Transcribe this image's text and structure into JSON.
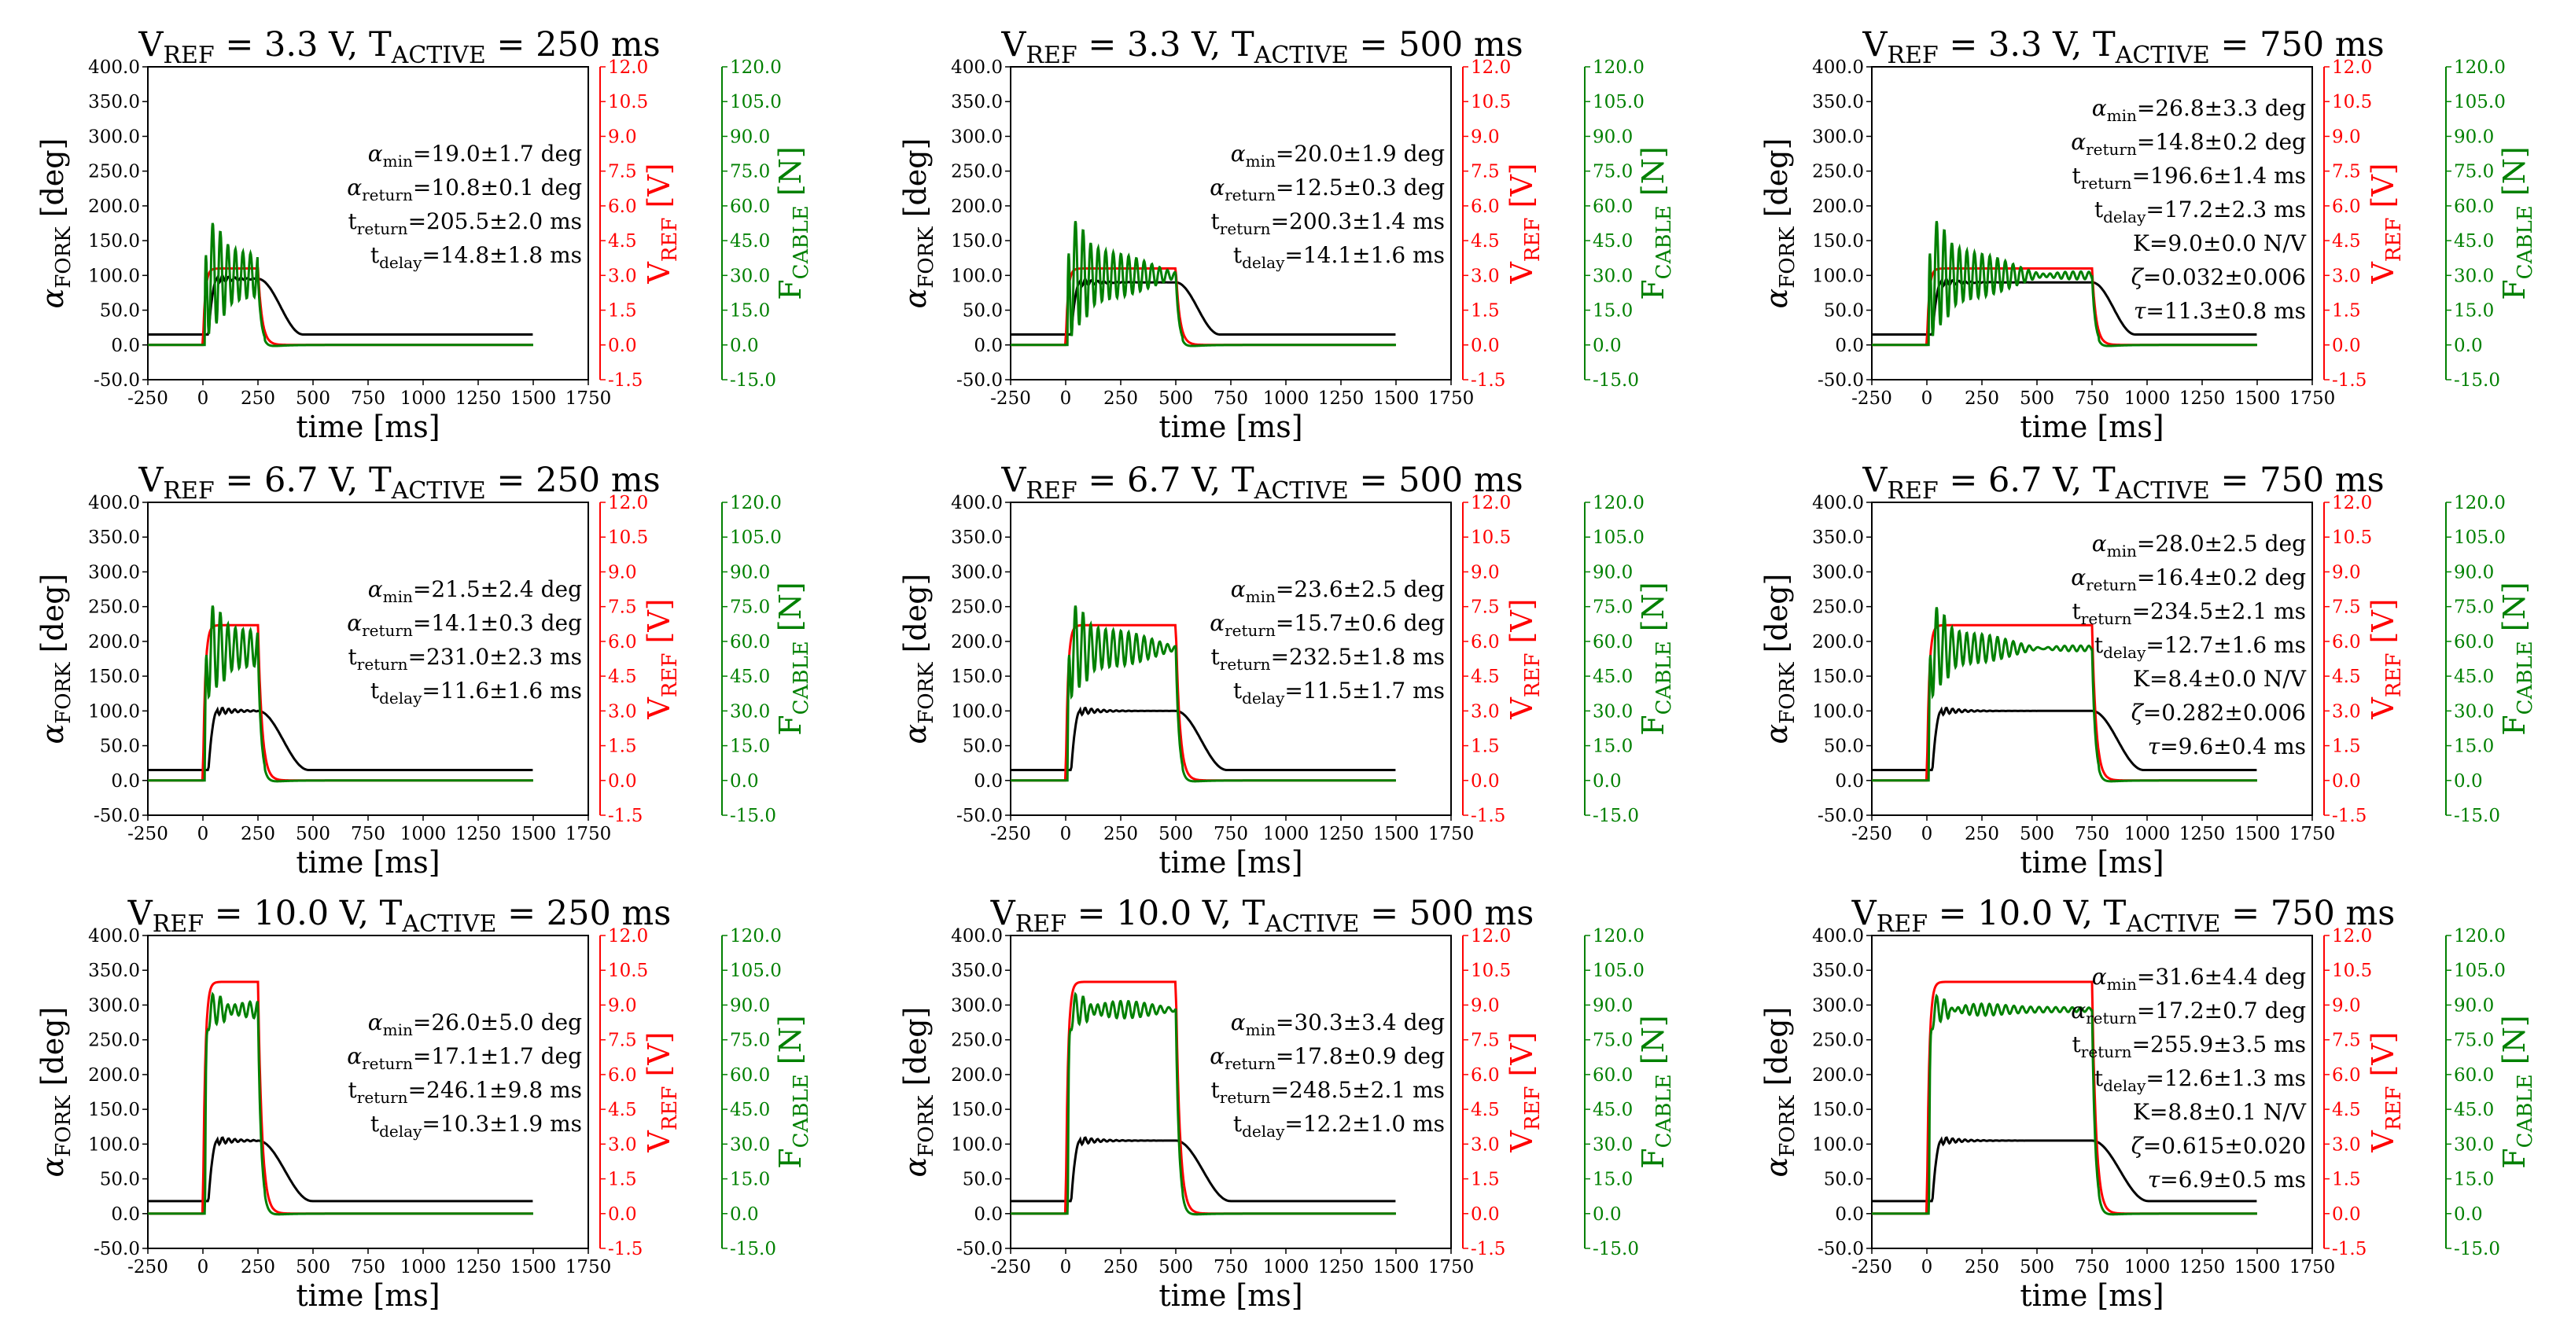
{
  "figure": {
    "xlabel": "time [ms]",
    "units": {
      "deg": "deg",
      "ms": "ms",
      "NV": "N/V"
    },
    "axes": {
      "left": {
        "label_main": "α",
        "label_sub": "FORK",
        "label_unit": "[deg]",
        "ticks": [
          "-50.0",
          "0.0",
          "50.0",
          "100.0",
          "150.0",
          "200.0",
          "250.0",
          "300.0",
          "350.0",
          "400.0"
        ],
        "color": "#000000"
      },
      "right1": {
        "label_main": "V",
        "label_sub": "REF",
        "label_unit": "[V]",
        "ticks": [
          "-1.5",
          "0.0",
          "1.5",
          "3.0",
          "4.5",
          "6.0",
          "7.5",
          "9.0",
          "10.5",
          "12.0"
        ],
        "color": "#ff0000"
      },
      "right2": {
        "label_main": "F",
        "label_sub": "CABLE",
        "label_unit": "[N]",
        "ticks": [
          "-15.0",
          "0.0",
          "15.0",
          "30.0",
          "45.0",
          "60.0",
          "75.0",
          "90.0",
          "105.0",
          "120.0"
        ],
        "color": "#008000"
      },
      "xticks": [
        "-250",
        "0",
        "250",
        "500",
        "750",
        "1000",
        "1250",
        "1500",
        "1750"
      ]
    },
    "colors": {
      "fork": "#000000",
      "vref": "#ff0000",
      "force": "#008000"
    }
  },
  "chart_data": [
    {
      "type": "line",
      "vref": "3.3",
      "tactive": "250",
      "title_main": "V",
      "title_sub": "REF",
      "title_mid": " = 3.3 V, T",
      "title_sub2": "ACTIVE",
      "title_end": " = 250 ms",
      "xlim": [
        -250,
        1750
      ],
      "ylim": [
        -50,
        400
      ],
      "y2lim": [
        -1.5,
        12
      ],
      "y3lim": [
        -15,
        120
      ],
      "series": [
        {
          "name": "alpha_fork",
          "axis": "left",
          "color": "#000000",
          "baseline": 15,
          "plateau": 95,
          "start": 25,
          "active": 250,
          "return": 205.5
        },
        {
          "name": "v_ref",
          "axis": "right1",
          "color": "#ff0000",
          "value": 3.3,
          "start": 0,
          "active": 250
        },
        {
          "name": "f_cable",
          "axis": "right2",
          "color": "#008000",
          "plateau": 30,
          "peak": 57,
          "start": 0,
          "active": 250
        }
      ],
      "annotations": [
        {
          "sym": "α",
          "sub": "min",
          "val": "=19.0±1.7 deg"
        },
        {
          "sym": "α",
          "sub": "return",
          "val": "=10.8±0.1 deg"
        },
        {
          "sym": "t",
          "sub": "return",
          "val": "=205.5±2.0 ms"
        },
        {
          "sym": "t",
          "sub": "delay",
          "val": "=14.8±1.8 ms"
        }
      ]
    },
    {
      "type": "line",
      "vref": "3.3",
      "tactive": "500",
      "title_main": "V",
      "title_sub": "REF",
      "title_mid": " = 3.3 V, T",
      "title_sub2": "ACTIVE",
      "title_end": " = 500 ms",
      "xlim": [
        -250,
        1750
      ],
      "ylim": [
        -50,
        400
      ],
      "y2lim": [
        -1.5,
        12
      ],
      "y3lim": [
        -15,
        120
      ],
      "series": [
        {
          "name": "alpha_fork",
          "axis": "left",
          "color": "#000000",
          "baseline": 15,
          "plateau": 90,
          "start": 25,
          "active": 500,
          "return": 200.3
        },
        {
          "name": "v_ref",
          "axis": "right1",
          "color": "#ff0000",
          "value": 3.3,
          "start": 0,
          "active": 500
        },
        {
          "name": "f_cable",
          "axis": "right2",
          "color": "#008000",
          "plateau": 30,
          "peak": 58,
          "start": 0,
          "active": 500
        }
      ],
      "annotations": [
        {
          "sym": "α",
          "sub": "min",
          "val": "=20.0±1.9 deg"
        },
        {
          "sym": "α",
          "sub": "return",
          "val": "=12.5±0.3 deg"
        },
        {
          "sym": "t",
          "sub": "return",
          "val": "=200.3±1.4 ms"
        },
        {
          "sym": "t",
          "sub": "delay",
          "val": "=14.1±1.6 ms"
        }
      ]
    },
    {
      "type": "line",
      "vref": "3.3",
      "tactive": "750",
      "title_main": "V",
      "title_sub": "REF",
      "title_mid": " = 3.3 V, T",
      "title_sub2": "ACTIVE",
      "title_end": " = 750 ms",
      "xlim": [
        -250,
        1750
      ],
      "ylim": [
        -50,
        400
      ],
      "y2lim": [
        -1.5,
        12
      ],
      "y3lim": [
        -15,
        120
      ],
      "series": [
        {
          "name": "alpha_fork",
          "axis": "left",
          "color": "#000000",
          "baseline": 15,
          "plateau": 90,
          "start": 25,
          "active": 750,
          "return": 196.6
        },
        {
          "name": "v_ref",
          "axis": "right1",
          "color": "#ff0000",
          "value": 3.3,
          "start": 0,
          "active": 750
        },
        {
          "name": "f_cable",
          "axis": "right2",
          "color": "#008000",
          "plateau": 30,
          "peak": 58,
          "start": 0,
          "active": 750
        }
      ],
      "annotations": [
        {
          "sym": "α",
          "sub": "min",
          "val": "=26.8±3.3 deg"
        },
        {
          "sym": "α",
          "sub": "return",
          "val": "=14.8±0.2 deg"
        },
        {
          "sym": "t",
          "sub": "return",
          "val": "=196.6±1.4 ms"
        },
        {
          "sym": "t",
          "sub": "delay",
          "val": "=17.2±2.3 ms"
        },
        {
          "sym": "",
          "sub": "",
          "val": "K=9.0±0.0 N/V"
        },
        {
          "sym": "ζ",
          "sub": "",
          "val": "=0.032±0.006"
        },
        {
          "sym": "τ",
          "sub": "",
          "val": "=11.3±0.8 ms"
        }
      ]
    },
    {
      "type": "line",
      "vref": "6.7",
      "tactive": "250",
      "title_main": "V",
      "title_sub": "REF",
      "title_mid": " = 6.7 V, T",
      "title_sub2": "ACTIVE",
      "title_end": " = 250 ms",
      "xlim": [
        -250,
        1750
      ],
      "ylim": [
        -50,
        400
      ],
      "y2lim": [
        -1.5,
        12
      ],
      "y3lim": [
        -15,
        120
      ],
      "series": [
        {
          "name": "alpha_fork",
          "axis": "left",
          "color": "#000000",
          "baseline": 15,
          "plateau": 100,
          "start": 25,
          "active": 250,
          "return": 231.0
        },
        {
          "name": "v_ref",
          "axis": "right1",
          "color": "#ff0000",
          "value": 6.7,
          "start": 0,
          "active": 250
        },
        {
          "name": "f_cable",
          "axis": "right2",
          "color": "#008000",
          "plateau": 57,
          "peak": 79,
          "start": 0,
          "active": 250
        }
      ],
      "annotations": [
        {
          "sym": "α",
          "sub": "min",
          "val": "=21.5±2.4 deg"
        },
        {
          "sym": "α",
          "sub": "return",
          "val": "=14.1±0.3 deg"
        },
        {
          "sym": "t",
          "sub": "return",
          "val": "=231.0±2.3 ms"
        },
        {
          "sym": "t",
          "sub": "delay",
          "val": "=11.6±1.6 ms"
        }
      ]
    },
    {
      "type": "line",
      "vref": "6.7",
      "tactive": "500",
      "title_main": "V",
      "title_sub": "REF",
      "title_mid": " = 6.7 V, T",
      "title_sub2": "ACTIVE",
      "title_end": " = 500 ms",
      "xlim": [
        -250,
        1750
      ],
      "ylim": [
        -50,
        400
      ],
      "y2lim": [
        -1.5,
        12
      ],
      "y3lim": [
        -15,
        120
      ],
      "series": [
        {
          "name": "alpha_fork",
          "axis": "left",
          "color": "#000000",
          "baseline": 15,
          "plateau": 100,
          "start": 25,
          "active": 500,
          "return": 232.5
        },
        {
          "name": "v_ref",
          "axis": "right1",
          "color": "#ff0000",
          "value": 6.7,
          "start": 0,
          "active": 500
        },
        {
          "name": "f_cable",
          "axis": "right2",
          "color": "#008000",
          "plateau": 57,
          "peak": 79,
          "start": 0,
          "active": 500
        }
      ],
      "annotations": [
        {
          "sym": "α",
          "sub": "min",
          "val": "=23.6±2.5 deg"
        },
        {
          "sym": "α",
          "sub": "return",
          "val": "=15.7±0.6 deg"
        },
        {
          "sym": "t",
          "sub": "return",
          "val": "=232.5±1.8 ms"
        },
        {
          "sym": "t",
          "sub": "delay",
          "val": "=11.5±1.7 ms"
        }
      ]
    },
    {
      "type": "line",
      "vref": "6.7",
      "tactive": "750",
      "title_main": "V",
      "title_sub": "REF",
      "title_mid": " = 6.7 V, T",
      "title_sub2": "ACTIVE",
      "title_end": " = 750 ms",
      "xlim": [
        -250,
        1750
      ],
      "ylim": [
        -50,
        400
      ],
      "y2lim": [
        -1.5,
        12
      ],
      "y3lim": [
        -15,
        120
      ],
      "series": [
        {
          "name": "alpha_fork",
          "axis": "left",
          "color": "#000000",
          "baseline": 15,
          "plateau": 100,
          "start": 25,
          "active": 750,
          "return": 234.5
        },
        {
          "name": "v_ref",
          "axis": "right1",
          "color": "#ff0000",
          "value": 6.7,
          "start": 0,
          "active": 750
        },
        {
          "name": "f_cable",
          "axis": "right2",
          "color": "#008000",
          "plateau": 57,
          "peak": 79,
          "start": 0,
          "active": 750
        }
      ],
      "annotations": [
        {
          "sym": "α",
          "sub": "min",
          "val": "=28.0±2.5 deg"
        },
        {
          "sym": "α",
          "sub": "return",
          "val": "=16.4±0.2 deg"
        },
        {
          "sym": "t",
          "sub": "return",
          "val": "=234.5±2.1 ms"
        },
        {
          "sym": "t",
          "sub": "delay",
          "val": "=12.7±1.6 ms"
        },
        {
          "sym": "",
          "sub": "",
          "val": "K=8.4±0.0 N/V"
        },
        {
          "sym": "ζ",
          "sub": "",
          "val": "=0.282±0.006"
        },
        {
          "sym": "τ",
          "sub": "",
          "val": "=9.6±0.4 ms"
        }
      ]
    },
    {
      "type": "line",
      "vref": "10.0",
      "tactive": "250",
      "title_main": "V",
      "title_sub": "REF",
      "title_mid": " = 10.0 V, T",
      "title_sub2": "ACTIVE",
      "title_end": " = 250 ms",
      "xlim": [
        -250,
        1750
      ],
      "ylim": [
        -50,
        400
      ],
      "y2lim": [
        -1.5,
        12
      ],
      "y3lim": [
        -15,
        120
      ],
      "series": [
        {
          "name": "alpha_fork",
          "axis": "left",
          "color": "#000000",
          "baseline": 18,
          "plateau": 105,
          "start": 25,
          "active": 250,
          "return": 246.1
        },
        {
          "name": "v_ref",
          "axis": "right1",
          "color": "#ff0000",
          "value": 10.0,
          "start": 0,
          "active": 250
        },
        {
          "name": "f_cable",
          "axis": "right2",
          "color": "#008000",
          "plateau": 88,
          "peak": 96,
          "start": 0,
          "active": 250
        }
      ],
      "annotations": [
        {
          "sym": "α",
          "sub": "min",
          "val": "=26.0±5.0 deg"
        },
        {
          "sym": "α",
          "sub": "return",
          "val": "=17.1±1.7 deg"
        },
        {
          "sym": "t",
          "sub": "return",
          "val": "=246.1±9.8 ms"
        },
        {
          "sym": "t",
          "sub": "delay",
          "val": "=10.3±1.9 ms"
        }
      ]
    },
    {
      "type": "line",
      "vref": "10.0",
      "tactive": "500",
      "title_main": "V",
      "title_sub": "REF",
      "title_mid": " = 10.0 V, T",
      "title_sub2": "ACTIVE",
      "title_end": " = 500 ms",
      "xlim": [
        -250,
        1750
      ],
      "ylim": [
        -50,
        400
      ],
      "y2lim": [
        -1.5,
        12
      ],
      "y3lim": [
        -15,
        120
      ],
      "series": [
        {
          "name": "alpha_fork",
          "axis": "left",
          "color": "#000000",
          "baseline": 18,
          "plateau": 105,
          "start": 25,
          "active": 500,
          "return": 248.5
        },
        {
          "name": "v_ref",
          "axis": "right1",
          "color": "#ff0000",
          "value": 10.0,
          "start": 0,
          "active": 500
        },
        {
          "name": "f_cable",
          "axis": "right2",
          "color": "#008000",
          "plateau": 88,
          "peak": 96,
          "start": 0,
          "active": 500
        }
      ],
      "annotations": [
        {
          "sym": "α",
          "sub": "min",
          "val": "=30.3±3.4 deg"
        },
        {
          "sym": "α",
          "sub": "return",
          "val": "=17.8±0.9 deg"
        },
        {
          "sym": "t",
          "sub": "return",
          "val": "=248.5±2.1 ms"
        },
        {
          "sym": "t",
          "sub": "delay",
          "val": "=12.2±1.0 ms"
        }
      ]
    },
    {
      "type": "line",
      "vref": "10.0",
      "tactive": "750",
      "title_main": "V",
      "title_sub": "REF",
      "title_mid": " = 10.0 V, T",
      "title_sub2": "ACTIVE",
      "title_end": " = 750 ms",
      "xlim": [
        -250,
        1750
      ],
      "ylim": [
        -50,
        400
      ],
      "y2lim": [
        -1.5,
        12
      ],
      "y3lim": [
        -15,
        120
      ],
      "series": [
        {
          "name": "alpha_fork",
          "axis": "left",
          "color": "#000000",
          "baseline": 18,
          "plateau": 105,
          "start": 25,
          "active": 750,
          "return": 255.9
        },
        {
          "name": "v_ref",
          "axis": "right1",
          "color": "#ff0000",
          "value": 10.0,
          "start": 0,
          "active": 750
        },
        {
          "name": "f_cable",
          "axis": "right2",
          "color": "#008000",
          "plateau": 88,
          "peak": 96,
          "start": 0,
          "active": 750
        }
      ],
      "annotations": [
        {
          "sym": "α",
          "sub": "min",
          "val": "=31.6±4.4 deg"
        },
        {
          "sym": "α",
          "sub": "return",
          "val": "=17.2±0.7 deg"
        },
        {
          "sym": "t",
          "sub": "return",
          "val": "=255.9±3.5 ms"
        },
        {
          "sym": "t",
          "sub": "delay",
          "val": "=12.6±1.3 ms"
        },
        {
          "sym": "",
          "sub": "",
          "val": "K=8.8±0.1 N/V"
        },
        {
          "sym": "ζ",
          "sub": "",
          "val": "=0.615±0.020"
        },
        {
          "sym": "τ",
          "sub": "",
          "val": "=6.9±0.5 ms"
        }
      ]
    }
  ]
}
